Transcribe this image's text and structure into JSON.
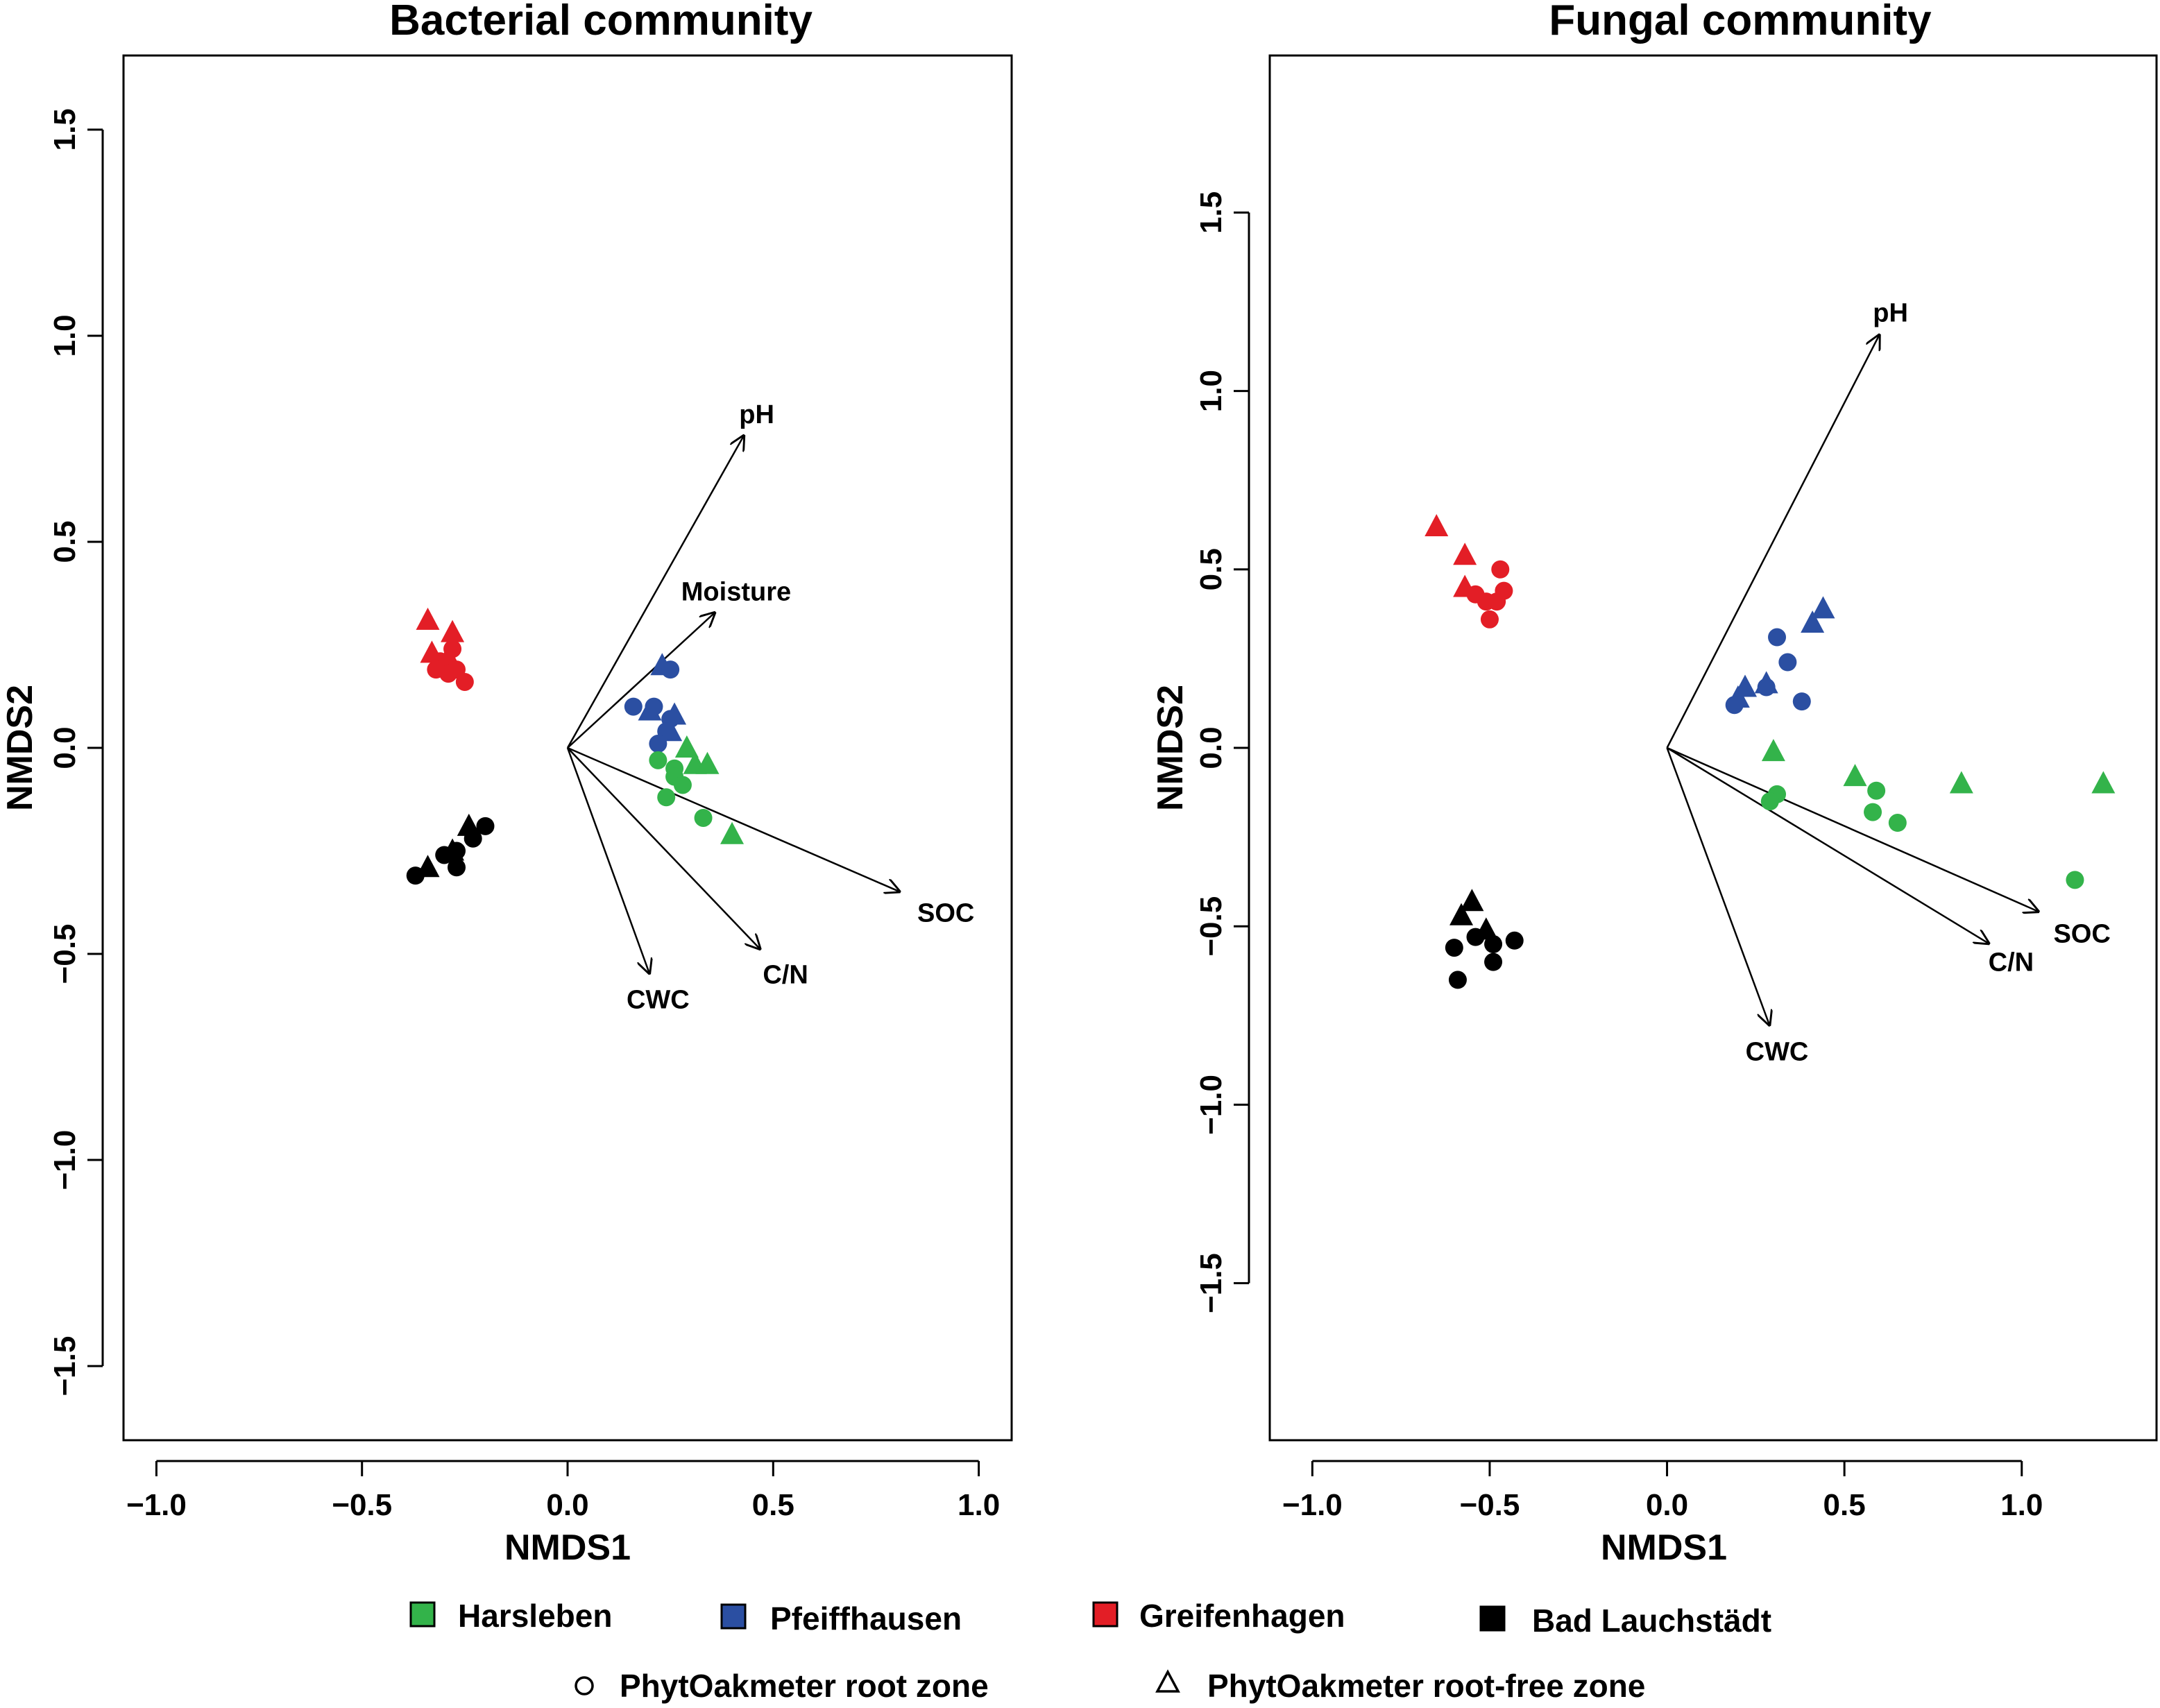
{
  "colors": {
    "Harsleben": "#33b34a",
    "Pfeiffhausen": "#2b4fa2",
    "Greifenhagen": "#e31e26",
    "Bad Lauchstädt": "#000000"
  },
  "legend": {
    "sites": [
      "Harsleben",
      "Pfeiffhausen",
      "Greifenhagen",
      "Bad Lauchstädt"
    ],
    "shapes": [
      {
        "shape": "circle",
        "label": "PhytOakmeter root zone"
      },
      {
        "shape": "triangle",
        "label": "PhytOakmeter root-free zone"
      }
    ]
  },
  "chart_data": [
    {
      "type": "scatter",
      "title": "Bacterial community",
      "xlabel": "NMDS1",
      "ylabel": "NMDS2",
      "xlim": [
        -1.08,
        1.08
      ],
      "ylim": [
        -1.68,
        1.68
      ],
      "xticks": [
        -1.0,
        -0.5,
        0.0,
        0.5,
        1.0
      ],
      "yticks": [
        -1.5,
        -1.0,
        -0.5,
        0.0,
        0.5,
        1.0,
        1.5
      ],
      "vectors": [
        {
          "label": "pH",
          "x": 0.43,
          "y": 0.76,
          "lx": 0.46,
          "ly": 0.81
        },
        {
          "label": "Moisture",
          "x": 0.36,
          "y": 0.33,
          "lx": 0.41,
          "ly": 0.38
        },
        {
          "label": "SOC",
          "x": 0.81,
          "y": -0.35,
          "lx": 0.92,
          "ly": -0.4
        },
        {
          "label": "C/N",
          "x": 0.47,
          "y": -0.49,
          "lx": 0.53,
          "ly": -0.55
        },
        {
          "label": "CWC",
          "x": 0.2,
          "y": -0.55,
          "lx": 0.22,
          "ly": -0.61
        }
      ],
      "series": [
        {
          "site": "Greifenhagen",
          "shape": "triangle",
          "points": [
            [
              -0.34,
              0.31
            ],
            [
              -0.28,
              0.28
            ],
            [
              -0.33,
              0.23
            ],
            [
              -0.29,
              0.22
            ]
          ]
        },
        {
          "site": "Greifenhagen",
          "shape": "circle",
          "points": [
            [
              -0.28,
              0.24
            ],
            [
              -0.31,
              0.21
            ],
            [
              -0.29,
              0.18
            ],
            [
              -0.32,
              0.19
            ],
            [
              -0.27,
              0.19
            ],
            [
              -0.25,
              0.16
            ]
          ]
        },
        {
          "site": "Bad Lauchstädt",
          "shape": "triangle",
          "points": [
            [
              -0.24,
              -0.19
            ],
            [
              -0.28,
              -0.25
            ],
            [
              -0.34,
              -0.29
            ]
          ]
        },
        {
          "site": "Bad Lauchstädt",
          "shape": "circle",
          "points": [
            [
              -0.2,
              -0.19
            ],
            [
              -0.23,
              -0.22
            ],
            [
              -0.27,
              -0.25
            ],
            [
              -0.3,
              -0.26
            ],
            [
              -0.27,
              -0.29
            ],
            [
              -0.37,
              -0.31
            ]
          ]
        },
        {
          "site": "Pfeiffhausen",
          "shape": "triangle",
          "points": [
            [
              0.23,
              0.2
            ],
            [
              0.2,
              0.09
            ],
            [
              0.26,
              0.08
            ],
            [
              0.25,
              0.04
            ]
          ]
        },
        {
          "site": "Pfeiffhausen",
          "shape": "circle",
          "points": [
            [
              0.25,
              0.19
            ],
            [
              0.16,
              0.1
            ],
            [
              0.21,
              0.1
            ],
            [
              0.25,
              0.07
            ],
            [
              0.24,
              0.04
            ],
            [
              0.22,
              0.01
            ]
          ]
        },
        {
          "site": "Harsleben",
          "shape": "triangle",
          "points": [
            [
              0.29,
              0.0
            ],
            [
              0.31,
              -0.04
            ],
            [
              0.34,
              -0.04
            ],
            [
              0.4,
              -0.21
            ]
          ]
        },
        {
          "site": "Harsleben",
          "shape": "circle",
          "points": [
            [
              0.22,
              -0.03
            ],
            [
              0.26,
              -0.05
            ],
            [
              0.26,
              -0.07
            ],
            [
              0.28,
              -0.09
            ],
            [
              0.24,
              -0.12
            ],
            [
              0.33,
              -0.17
            ]
          ]
        }
      ]
    },
    {
      "type": "scatter",
      "title": "Fungal community",
      "xlabel": "NMDS1",
      "ylabel": "NMDS2",
      "xlim": [
        -1.12,
        1.38
      ],
      "ylim": [
        -1.94,
        1.94
      ],
      "xticks": [
        -1.0,
        -0.5,
        0.0,
        0.5,
        1.0
      ],
      "yticks": [
        -1.5,
        -1.0,
        -0.5,
        0.0,
        0.5,
        1.0,
        1.5
      ],
      "vectors": [
        {
          "label": "pH",
          "x": 0.6,
          "y": 1.16,
          "lx": 0.63,
          "ly": 1.22
        },
        {
          "label": "SOC",
          "x": 1.05,
          "y": -0.46,
          "lx": 1.17,
          "ly": -0.52
        },
        {
          "label": "C/N",
          "x": 0.91,
          "y": -0.55,
          "lx": 0.97,
          "ly": -0.6
        },
        {
          "label": "CWC",
          "x": 0.29,
          "y": -0.78,
          "lx": 0.31,
          "ly": -0.85
        }
      ],
      "series": [
        {
          "site": "Greifenhagen",
          "shape": "triangle",
          "points": [
            [
              -0.65,
              0.62
            ],
            [
              -0.57,
              0.54
            ],
            [
              -0.57,
              0.45
            ]
          ]
        },
        {
          "site": "Greifenhagen",
          "shape": "circle",
          "points": [
            [
              -0.47,
              0.5
            ],
            [
              -0.46,
              0.44
            ],
            [
              -0.54,
              0.43
            ],
            [
              -0.51,
              0.41
            ],
            [
              -0.48,
              0.41
            ],
            [
              -0.5,
              0.36
            ]
          ]
        },
        {
          "site": "Pfeiffhausen",
          "shape": "triangle",
          "points": [
            [
              0.44,
              0.39
            ],
            [
              0.41,
              0.35
            ],
            [
              0.22,
              0.17
            ],
            [
              0.28,
              0.18
            ],
            [
              0.2,
              0.14
            ]
          ]
        },
        {
          "site": "Pfeiffhausen",
          "shape": "circle",
          "points": [
            [
              0.31,
              0.31
            ],
            [
              0.34,
              0.24
            ],
            [
              0.28,
              0.17
            ],
            [
              0.38,
              0.13
            ],
            [
              0.19,
              0.12
            ]
          ]
        },
        {
          "site": "Harsleben",
          "shape": "triangle",
          "points": [
            [
              0.3,
              -0.01
            ],
            [
              0.53,
              -0.08
            ],
            [
              0.83,
              -0.1
            ],
            [
              1.23,
              -0.1
            ]
          ]
        },
        {
          "site": "Harsleben",
          "shape": "circle",
          "points": [
            [
              0.59,
              -0.12
            ],
            [
              0.31,
              -0.13
            ],
            [
              0.29,
              -0.15
            ],
            [
              0.58,
              -0.18
            ],
            [
              0.65,
              -0.21
            ],
            [
              1.15,
              -0.37
            ]
          ]
        },
        {
          "site": "Bad Lauchstädt",
          "shape": "triangle",
          "points": [
            [
              -0.55,
              -0.43
            ],
            [
              -0.58,
              -0.47
            ],
            [
              -0.51,
              -0.51
            ]
          ]
        },
        {
          "site": "Bad Lauchstädt",
          "shape": "circle",
          "points": [
            [
              -0.54,
              -0.53
            ],
            [
              -0.49,
              -0.55
            ],
            [
              -0.43,
              -0.54
            ],
            [
              -0.6,
              -0.56
            ],
            [
              -0.49,
              -0.6
            ],
            [
              -0.59,
              -0.65
            ]
          ]
        }
      ]
    }
  ]
}
